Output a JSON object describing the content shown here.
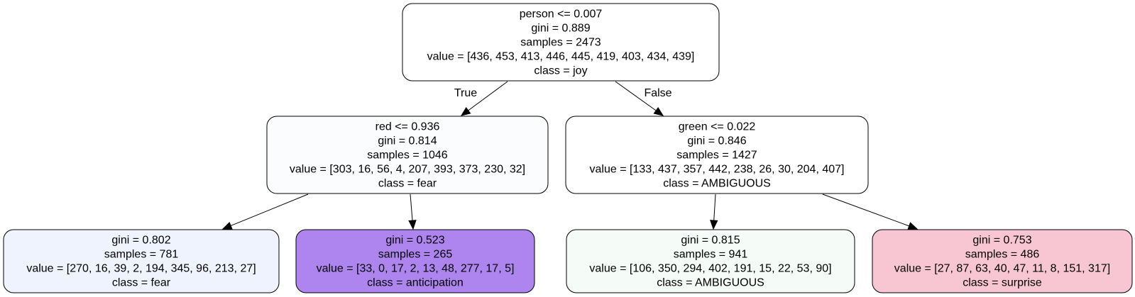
{
  "tree": {
    "nodes": [
      {
        "id": "root",
        "fill": "#ffffff",
        "lines": [
          "person <= 0.007",
          "gini = 0.889",
          "samples = 2473",
          "value = [436, 453, 413, 446, 445, 419, 403, 434, 439]",
          "class = joy"
        ]
      },
      {
        "id": "left",
        "fill": "#fbfcfe",
        "lines": [
          "red <= 0.936",
          "gini = 0.814",
          "samples = 1046",
          "value = [303, 16, 56, 4, 207, 393, 373, 230, 32]",
          "class = fear"
        ]
      },
      {
        "id": "right",
        "fill": "#ffffff",
        "lines": [
          "green <= 0.022",
          "gini = 0.846",
          "samples = 1427",
          "value = [133, 437, 357, 442, 238, 26, 30, 204, 407]",
          "class = AMBIGUOUS"
        ]
      },
      {
        "id": "left-left",
        "fill": "#eff3fd",
        "lines": [
          "gini = 0.802",
          "samples = 781",
          "value = [270, 16, 39, 2, 194, 345, 96, 213, 27]",
          "class = fear"
        ]
      },
      {
        "id": "left-right",
        "fill": "#ae85ef",
        "lines": [
          "gini = 0.523",
          "samples = 265",
          "value = [33, 0, 17, 2, 13, 48, 277, 17, 5]",
          "class = anticipation"
        ]
      },
      {
        "id": "right-left",
        "fill": "#f5fbf7",
        "lines": [
          "gini = 0.815",
          "samples = 941",
          "value = [106, 350, 294, 402, 191, 15, 22, 53, 90]",
          "class = AMBIGUOUS"
        ]
      },
      {
        "id": "right-right",
        "fill": "#f8c6d3",
        "lines": [
          "gini = 0.753",
          "samples = 486",
          "value = [27, 87, 63, 40, 47, 11, 8, 151, 317]",
          "class = surprise"
        ]
      }
    ],
    "edges": [
      {
        "from": "root",
        "to": "left",
        "label": "True"
      },
      {
        "from": "root",
        "to": "right",
        "label": "False"
      },
      {
        "from": "left",
        "to": "left-left",
        "label": ""
      },
      {
        "from": "left",
        "to": "left-right",
        "label": ""
      },
      {
        "from": "right",
        "to": "right-left",
        "label": ""
      },
      {
        "from": "right",
        "to": "right-right",
        "label": ""
      }
    ]
  }
}
